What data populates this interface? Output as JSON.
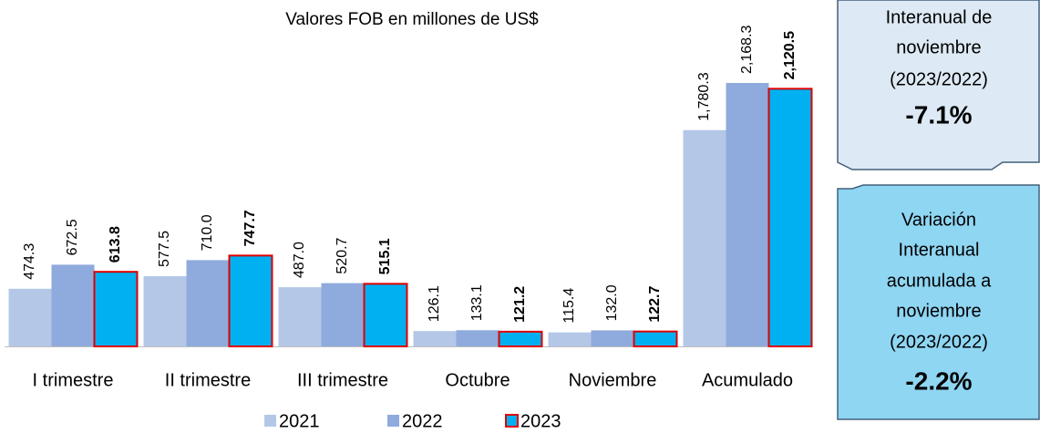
{
  "chart_data": {
    "type": "bar",
    "title": "Valores FOB en millones de US$",
    "categories": [
      "I trimestre",
      "II trimestre",
      "III trimestre",
      "Octubre",
      "Noviembre",
      "Acumulado"
    ],
    "series": [
      {
        "name": "2021",
        "color": "#b4c7e7",
        "values": [
          474.3,
          577.5,
          487.0,
          126.1,
          115.4,
          1780.3
        ],
        "value_labels": [
          "474.3",
          "577.5",
          "487.0",
          "126.1",
          "115.4",
          "1,780.3"
        ]
      },
      {
        "name": "2022",
        "color": "#8faadc",
        "values": [
          672.5,
          710.0,
          520.7,
          133.1,
          132.0,
          2168.3
        ],
        "value_labels": [
          "672.5",
          "710.0",
          "520.7",
          "133.1",
          "132.0",
          "2,168.3"
        ]
      },
      {
        "name": "2023",
        "color": "#00b0f0",
        "values": [
          613.8,
          747.7,
          515.1,
          121.2,
          122.7,
          2120.5
        ],
        "value_labels": [
          "613.8",
          "747.7",
          "515.1",
          "121.2",
          "122.7",
          "2,120.5"
        ]
      }
    ],
    "legend": "bottom",
    "annotations": [
      {
        "lines": [
          "Interanual de",
          "noviembre",
          "(2023/2022)"
        ],
        "value": "-7.1%"
      },
      {
        "lines": [
          "Variación",
          "Interanual",
          "acumulada a",
          "noviembre",
          "(2023/2022)"
        ],
        "value": "-2.2%"
      }
    ]
  }
}
